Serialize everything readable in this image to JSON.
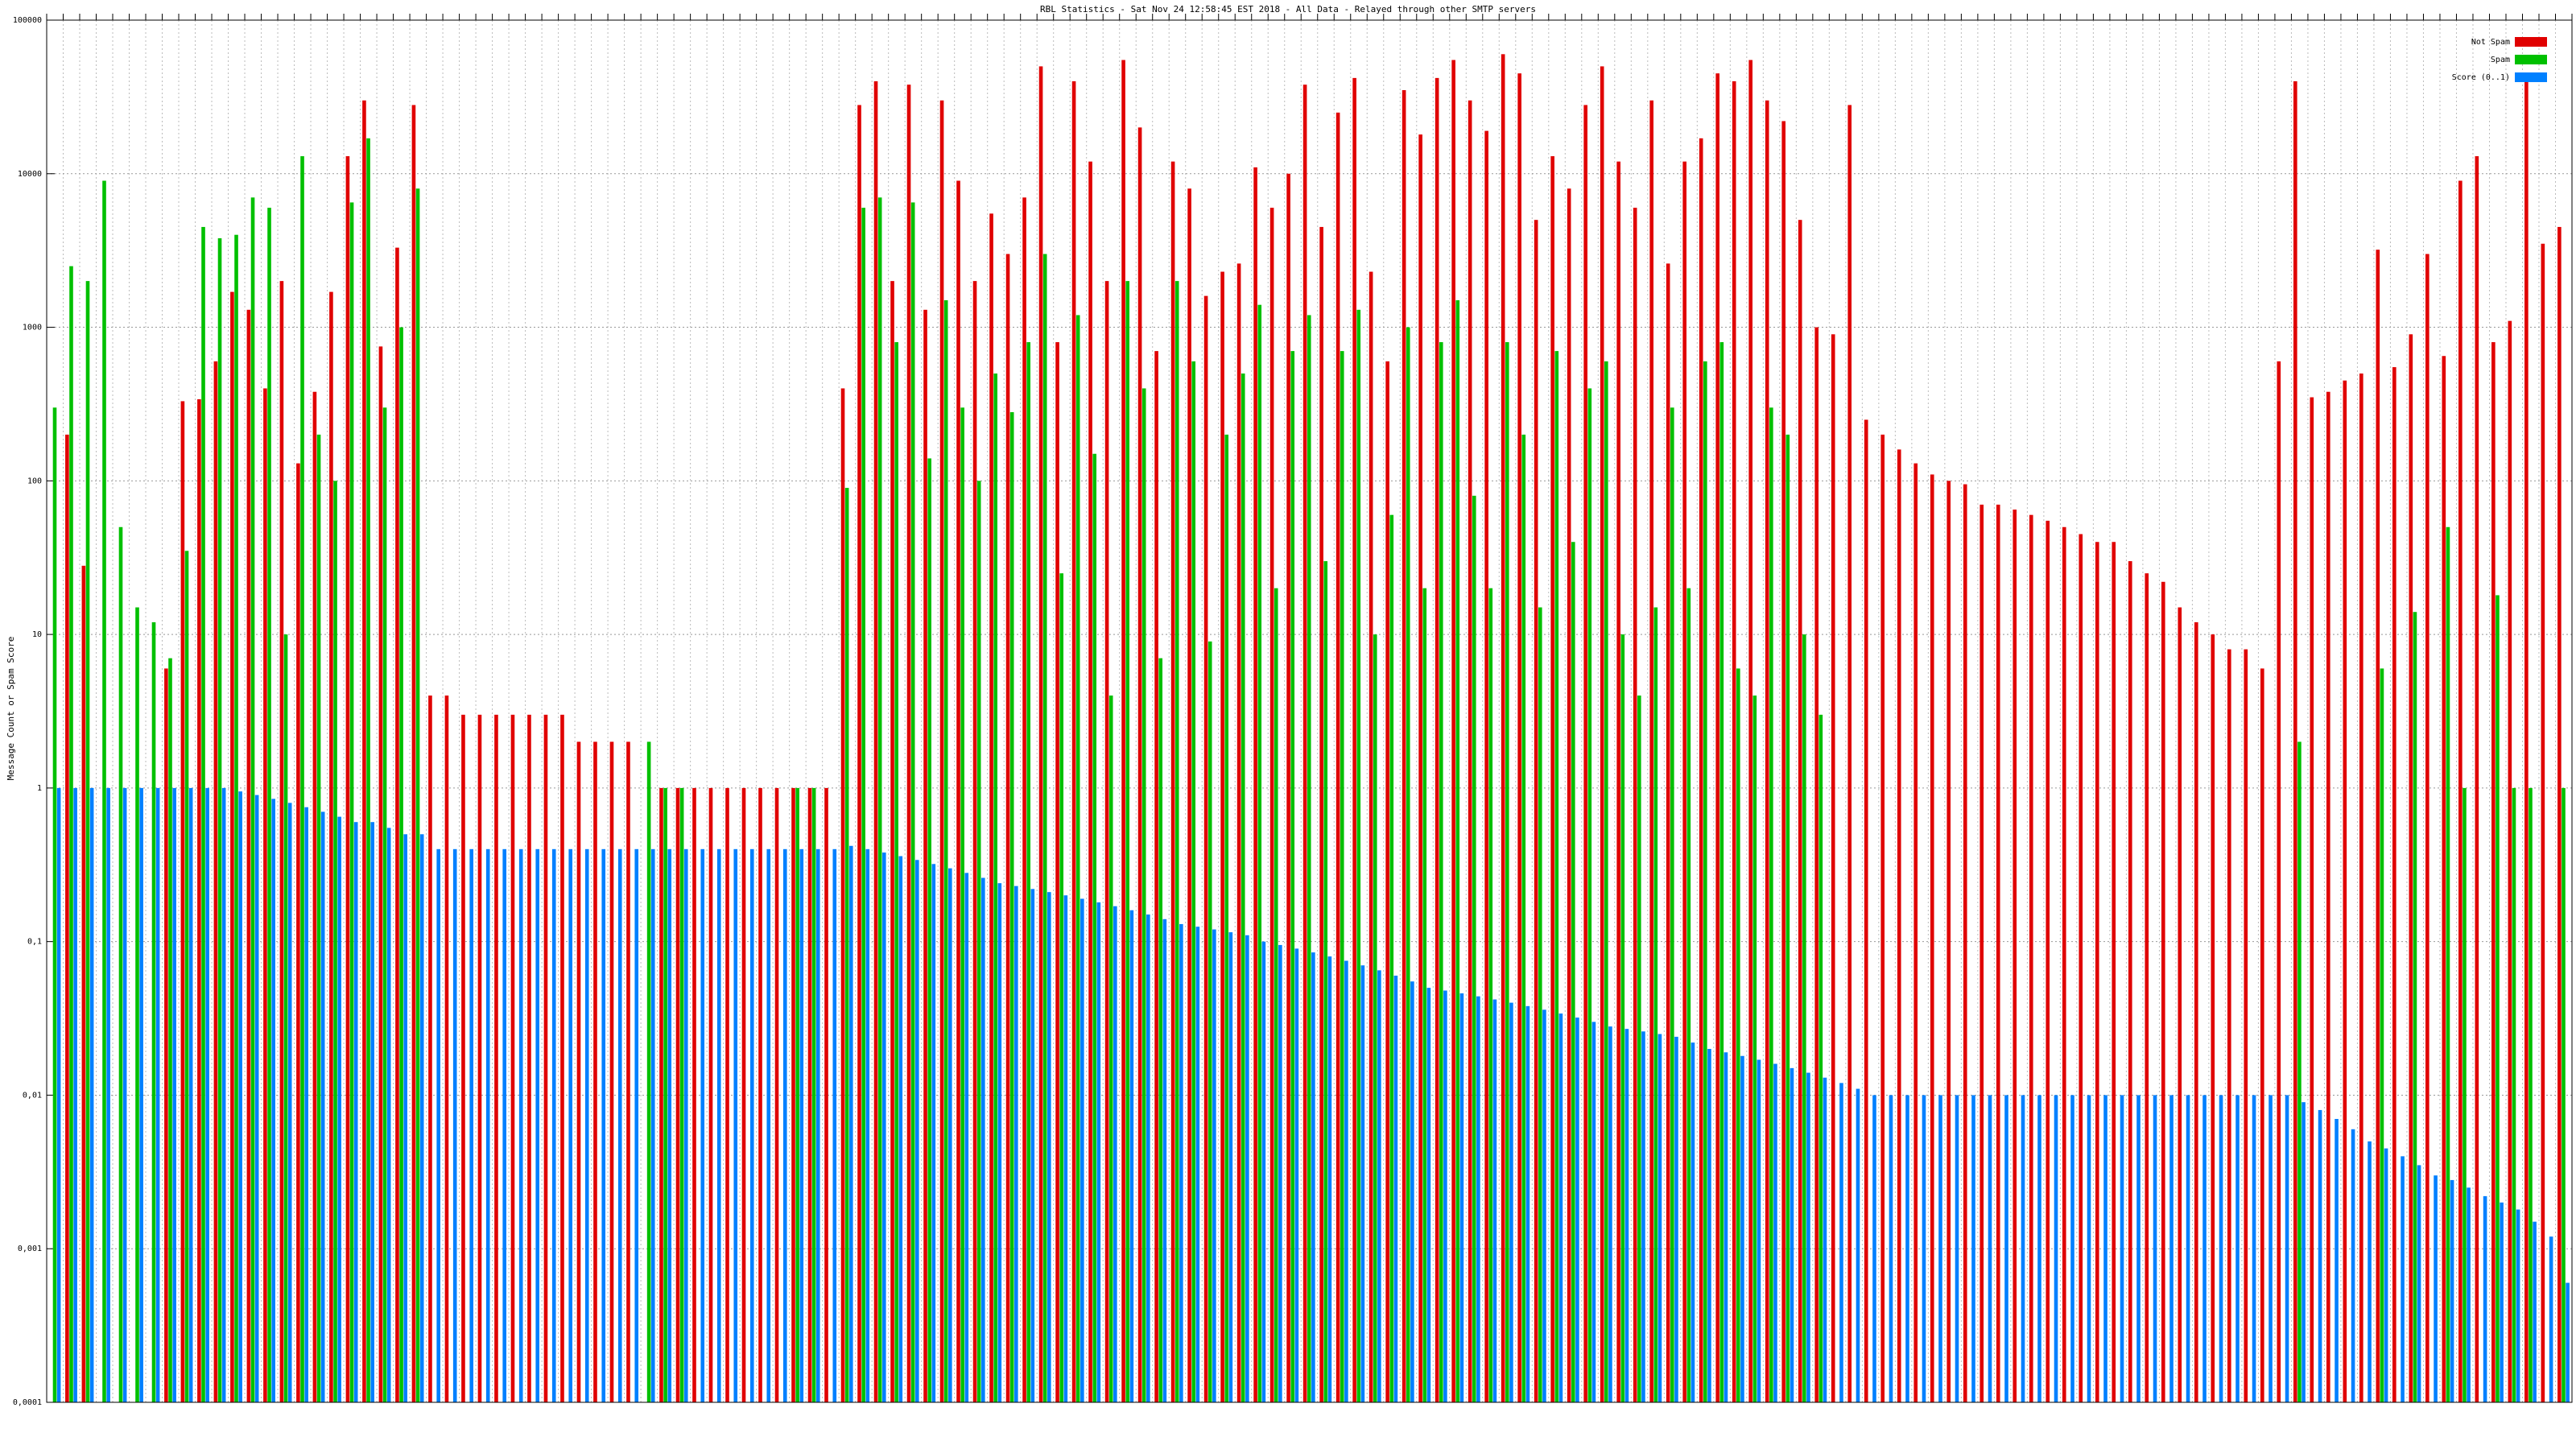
{
  "chart_data": {
    "type": "bar",
    "title": "RBL Statistics - Sat Nov 24 12:58:45 EST 2018 - All Data - Relayed through other SMTP servers",
    "y_label": "Message Count or Spam Score",
    "log_scale": true,
    "grid": true,
    "legend": "top-right",
    "ylim": [
      0.0001,
      100000
    ],
    "yticks": [
      {
        "value": 0.0001,
        "label": "0,0001"
      },
      {
        "value": 0.001,
        "label": "0,001"
      },
      {
        "value": 0.01,
        "label": "0,01"
      },
      {
        "value": 0.1,
        "label": "0,1"
      },
      1,
      10,
      100,
      1000,
      10000,
      100000
    ],
    "categories": [
      null,
      null,
      null,
      null,
      null,
      null,
      null,
      null,
      null,
      null,
      null,
      null,
      null,
      null,
      null,
      null,
      null,
      null,
      null,
      null,
      null,
      null,
      null,
      null,
      null,
      null,
      null,
      null,
      null,
      null,
      null,
      null,
      null,
      null,
      null,
      null,
      null,
      null,
      null,
      null,
      null,
      null,
      null,
      null,
      null,
      null,
      null,
      null,
      null,
      null,
      null,
      null,
      null,
      null,
      null,
      null,
      null,
      null,
      null,
      null,
      null,
      null,
      null,
      null,
      null,
      null,
      null,
      null,
      null,
      null,
      null,
      null,
      null,
      null,
      null,
      null,
      null,
      null,
      null,
      null,
      null,
      null,
      null,
      null,
      null,
      null,
      null,
      null,
      null,
      null,
      null,
      null,
      null,
      null,
      null,
      null,
      null,
      null,
      null,
      null,
      null,
      null,
      null,
      null,
      null,
      null,
      null,
      null,
      null,
      null,
      null,
      null,
      null,
      null,
      null,
      null,
      null,
      null,
      null,
      null,
      null,
      null,
      null,
      null,
      null,
      null,
      null,
      null,
      null,
      null,
      null,
      null,
      null,
      null,
      null,
      null,
      null,
      null,
      null,
      null,
      null,
      null,
      null,
      null,
      null,
      null,
      null,
      null,
      null,
      null,
      null,
      null,
      null
    ],
    "series": [
      {
        "name": "Not Spam",
        "color": "#e00000",
        "values": [
          null,
          200,
          28,
          null,
          null,
          null,
          null,
          6,
          330,
          340,
          600,
          1700,
          1300,
          400,
          2000,
          130,
          380,
          1700,
          13000,
          30000,
          750,
          3300,
          28000,
          4,
          4,
          3,
          3,
          3,
          3,
          3,
          3,
          3,
          2,
          2,
          2,
          2,
          null,
          1,
          1,
          1,
          1,
          1,
          1,
          1,
          1,
          1,
          1,
          1,
          400,
          28000,
          40000,
          2000,
          38000,
          1300,
          30000,
          9000,
          2000,
          5500,
          3000,
          7000,
          50000,
          800,
          40000,
          12000,
          2000,
          55000,
          20000,
          700,
          12000,
          8000,
          1600,
          2300,
          2600,
          11000,
          6000,
          10000,
          38000,
          4500,
          25000,
          42000,
          2300,
          600,
          35000,
          18000,
          42000,
          55000,
          30000,
          19000,
          60000,
          45000,
          5000,
          13000,
          8000,
          28000,
          50000,
          12000,
          6000,
          30000,
          2600,
          12000,
          17000,
          45000,
          40000,
          55000,
          30000,
          22000,
          5000,
          1000,
          900,
          28000,
          250,
          200,
          160,
          130,
          110,
          100,
          95,
          70,
          70,
          65,
          60,
          55,
          50,
          45,
          40,
          40,
          30,
          25,
          22,
          15,
          12,
          10,
          8,
          8,
          6,
          600,
          40000,
          350,
          380,
          450,
          500,
          3200,
          550,
          900,
          3000,
          650,
          9000,
          13000,
          800,
          1100,
          40000,
          3500,
          4500
        ]
      },
      {
        "name": "Spam",
        "color": "#00c000",
        "values": [
          300,
          2500,
          2000,
          9000,
          50,
          15,
          12,
          7,
          35,
          4500,
          3800,
          4000,
          7000,
          6000,
          10,
          13000,
          200,
          100,
          6500,
          17000,
          300,
          1000,
          8000,
          null,
          null,
          null,
          null,
          null,
          null,
          null,
          null,
          null,
          null,
          null,
          null,
          null,
          2,
          1,
          1,
          null,
          null,
          null,
          null,
          null,
          null,
          1,
          1,
          null,
          90,
          6000,
          7000,
          800,
          6500,
          140,
          1500,
          300,
          100,
          500,
          280,
          800,
          3000,
          25,
          1200,
          150,
          4,
          2000,
          400,
          7,
          2000,
          600,
          9,
          200,
          500,
          1400,
          20,
          700,
          1200,
          30,
          700,
          1300,
          10,
          60,
          1000,
          20,
          800,
          1500,
          80,
          20,
          800,
          200,
          15,
          700,
          40,
          400,
          600,
          10,
          4,
          15,
          300,
          20,
          600,
          800,
          6,
          4,
          300,
          200,
          10,
          3,
          null,
          null,
          null,
          null,
          null,
          null,
          null,
          null,
          null,
          null,
          null,
          null,
          null,
          null,
          null,
          null,
          null,
          null,
          null,
          null,
          null,
          null,
          null,
          null,
          null,
          null,
          null,
          null,
          2,
          null,
          null,
          null,
          null,
          6,
          null,
          14,
          null,
          50,
          1,
          null,
          18,
          1,
          1,
          null,
          1
        ]
      },
      {
        "name": "Score (0..1)",
        "color": "#0080ff",
        "values": [
          1,
          1,
          1,
          1,
          1,
          1,
          1,
          1,
          1,
          1,
          1,
          0.95,
          0.9,
          0.85,
          0.8,
          0.75,
          0.7,
          0.65,
          0.6,
          0.6,
          0.55,
          0.5,
          0.5,
          0.4,
          0.4,
          0.4,
          0.4,
          0.4,
          0.4,
          0.4,
          0.4,
          0.4,
          0.4,
          0.4,
          0.4,
          0.4,
          0.4,
          0.4,
          0.4,
          0.4,
          0.4,
          0.4,
          0.4,
          0.4,
          0.4,
          0.4,
          0.4,
          0.4,
          0.42,
          0.4,
          0.38,
          0.36,
          0.34,
          0.32,
          0.3,
          0.28,
          0.26,
          0.24,
          0.23,
          0.22,
          0.21,
          0.2,
          0.19,
          0.18,
          0.17,
          0.16,
          0.15,
          0.14,
          0.13,
          0.125,
          0.12,
          0.115,
          0.11,
          0.1,
          0.095,
          0.09,
          0.085,
          0.08,
          0.075,
          0.07,
          0.065,
          0.06,
          0.055,
          0.05,
          0.048,
          0.046,
          0.044,
          0.042,
          0.04,
          0.038,
          0.036,
          0.034,
          0.032,
          0.03,
          0.028,
          0.027,
          0.026,
          0.025,
          0.024,
          0.022,
          0.02,
          0.019,
          0.018,
          0.017,
          0.016,
          0.015,
          0.014,
          0.013,
          0.012,
          0.011,
          0.01,
          0.01,
          0.01,
          0.01,
          0.01,
          0.01,
          0.01,
          0.01,
          0.01,
          0.01,
          0.01,
          0.01,
          0.01,
          0.01,
          0.01,
          0.01,
          0.01,
          0.01,
          0.01,
          0.01,
          0.01,
          0.01,
          0.01,
          0.01,
          0.01,
          0.01,
          0.009,
          0.008,
          0.007,
          0.006,
          0.005,
          0.0045,
          0.004,
          0.0035,
          0.003,
          0.0028,
          0.0025,
          0.0022,
          0.002,
          0.0018,
          0.0015,
          0.0012,
          0.0006
        ]
      }
    ]
  }
}
